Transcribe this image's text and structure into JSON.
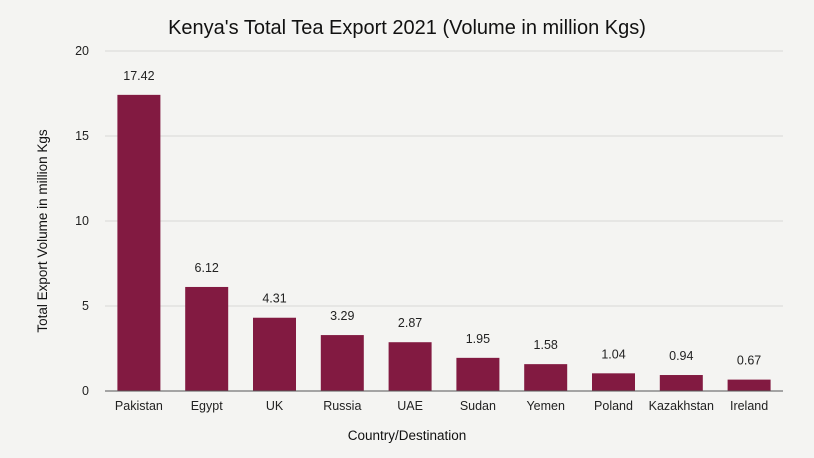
{
  "colors": {
    "background": "#f4f4f2",
    "bar": "#821a41",
    "grid": "#d9d9d6",
    "text": "#111111"
  },
  "chart_data": {
    "type": "bar",
    "title": "Kenya's Total Tea Export 2021 (Volume in million Kgs)",
    "xlabel": "Country/Destination",
    "ylabel": "Total Export Volume in million Kgs",
    "categories": [
      "Pakistan",
      "Egypt",
      "UK",
      "Russia",
      "UAE",
      "Sudan",
      "Yemen",
      "Poland",
      "Kazakhstan",
      "Ireland"
    ],
    "values": [
      17.42,
      6.12,
      4.31,
      3.29,
      2.87,
      1.95,
      1.58,
      1.04,
      0.94,
      0.67
    ],
    "value_labels": [
      "17.42",
      "6.12",
      "4.31",
      "3.29",
      "2.87",
      "1.95",
      "1.58",
      "1.04",
      "0.94",
      "0.67"
    ],
    "ylim": [
      0,
      20
    ],
    "yticks": [
      "0",
      "5",
      "10",
      "15",
      "20"
    ],
    "grid": true,
    "legend": "none"
  }
}
